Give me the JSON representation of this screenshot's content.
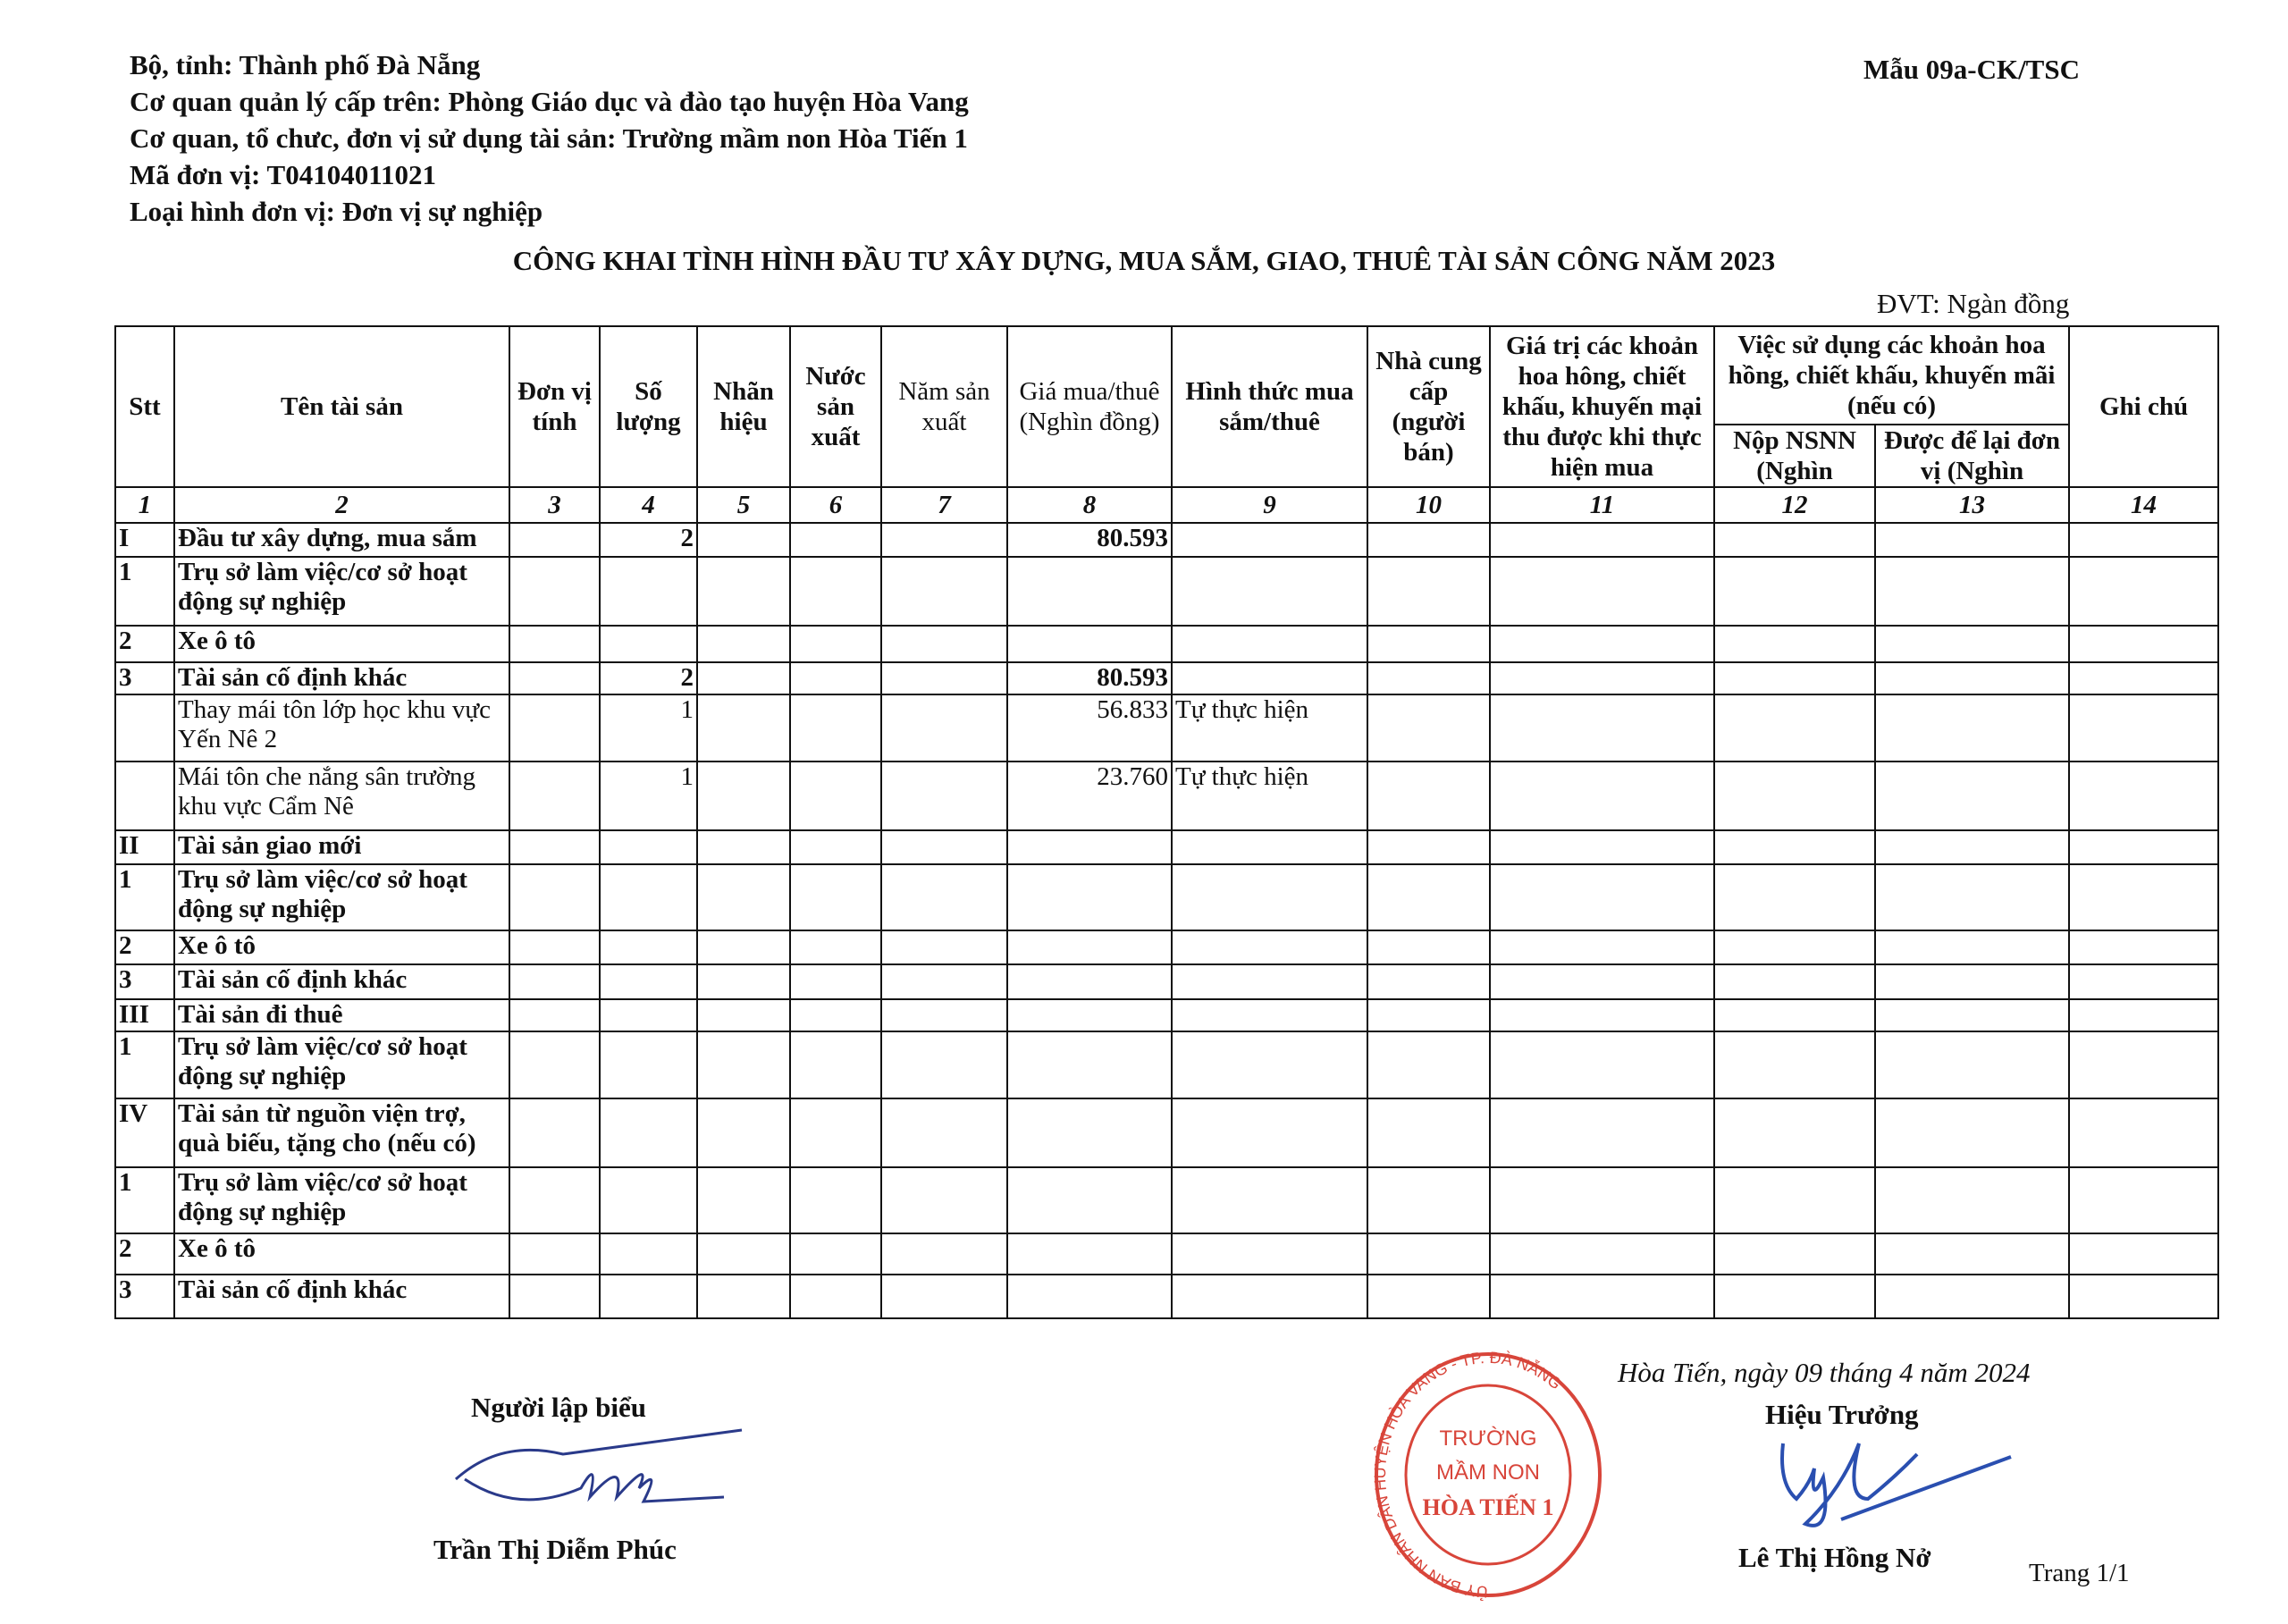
{
  "header": {
    "lines": [
      "Bộ, tỉnh: Thành phố Đà Nẵng",
      "Cơ quan quản lý cấp trên: Phòng Giáo dục và đào tạo huyện Hòa Vang",
      "Cơ quan, tổ chưc, đơn vị sử dụng tài sản: Trường mầm non Hòa Tiến 1",
      "Mã đơn vị: T04104011021",
      "Loại hình đơn vị: Đơn vị sự nghiệp"
    ],
    "form_code": "Mẫu 09a-CK/TSC",
    "title": "CÔNG KHAI TÌNH HÌNH ĐẦU TƯ XÂY DỰNG, MUA SẮM, GIAO, THUÊ TÀI SẢN CÔNG NĂM 2023",
    "unit": "ĐVT: Ngàn đồng"
  },
  "table": {
    "columns": {
      "stt": "Stt",
      "name": "Tên tài sản",
      "unit": "Đơn vị tính",
      "qty": "Số lượng",
      "brand": "Nhãn hiệu",
      "country": "Nước sản xuất",
      "year": "Năm sản xuất",
      "price": "Giá mua/thuê (Nghìn đồng)",
      "form": "Hình thức mua sắm/thuê",
      "supplier": "Nhà cung cấp (người bán)",
      "commission_value": "Giá trị các khoản hoa hông, chiết khấu, khuyến mại thu được khi thực hiện mua",
      "commission_use": "Việc sử dụng các khoản hoa hồng, chiết khấu, khuyến mãi (nếu có)",
      "nsnn": "Nộp NSNN (Nghìn",
      "retained": "Được để lại đơn vị (Nghìn",
      "note": "Ghi chú"
    },
    "column_numbers": [
      "1",
      "2",
      "3",
      "4",
      "5",
      "6",
      "7",
      "8",
      "9",
      "10",
      "11",
      "12",
      "13",
      "14"
    ],
    "rows": [
      {
        "type": "section",
        "cells": [
          "I",
          "Đầu tư xây dựng, mua sắm",
          "",
          "2",
          "",
          "",
          "",
          "80.593",
          "",
          "",
          "",
          "",
          "",
          ""
        ]
      },
      {
        "type": "section",
        "cells": [
          "1",
          "Trụ sở làm việc/cơ sở hoạt động sự nghiệp",
          "",
          "",
          "",
          "",
          "",
          "",
          "",
          "",
          "",
          "",
          "",
          ""
        ]
      },
      {
        "type": "section",
        "cells": [
          "2",
          "Xe ô tô",
          "",
          "",
          "",
          "",
          "",
          "",
          "",
          "",
          "",
          "",
          "",
          ""
        ]
      },
      {
        "type": "section",
        "cells": [
          "3",
          "Tài sản cố định khác",
          "",
          "2",
          "",
          "",
          "",
          "80.593",
          "",
          "",
          "",
          "",
          "",
          ""
        ]
      },
      {
        "type": "item",
        "cells": [
          "",
          "Thay mái tôn lớp học khu vực Yến Nê 2",
          "",
          "1",
          "",
          "",
          "",
          "56.833",
          "Tự thực hiện",
          "",
          "",
          "",
          "",
          ""
        ]
      },
      {
        "type": "item",
        "cells": [
          "",
          "Mái tôn che nắng sân trường khu vực Cẩm Nê",
          "",
          "1",
          "",
          "",
          "",
          "23.760",
          "Tự thực hiện",
          "",
          "",
          "",
          "",
          ""
        ]
      },
      {
        "type": "section",
        "cells": [
          "II",
          "Tài sản giao mới",
          "",
          "",
          "",
          "",
          "",
          "",
          "",
          "",
          "",
          "",
          "",
          ""
        ]
      },
      {
        "type": "section",
        "cells": [
          "1",
          "Trụ sở làm việc/cơ sở hoạt động sự nghiệp",
          "",
          "",
          "",
          "",
          "",
          "",
          "",
          "",
          "",
          "",
          "",
          ""
        ]
      },
      {
        "type": "section",
        "cells": [
          "2",
          "Xe ô tô",
          "",
          "",
          "",
          "",
          "",
          "",
          "",
          "",
          "",
          "",
          "",
          ""
        ]
      },
      {
        "type": "section",
        "cells": [
          "3",
          "Tài sản cố định khác",
          "",
          "",
          "",
          "",
          "",
          "",
          "",
          "",
          "",
          "",
          "",
          ""
        ]
      },
      {
        "type": "section",
        "cells": [
          "III",
          "Tài sản đi thuê",
          "",
          "",
          "",
          "",
          "",
          "",
          "",
          "",
          "",
          "",
          "",
          ""
        ]
      },
      {
        "type": "section",
        "cells": [
          "1",
          "Trụ sở làm việc/cơ sở hoạt động sự nghiệp",
          "",
          "",
          "",
          "",
          "",
          "",
          "",
          "",
          "",
          "",
          "",
          ""
        ]
      },
      {
        "type": "section",
        "cells": [
          "IV",
          "Tài sản từ nguồn viện trợ, quà biếu, tặng cho (nếu có)",
          "",
          "",
          "",
          "",
          "",
          "",
          "",
          "",
          "",
          "",
          "",
          ""
        ]
      },
      {
        "type": "section",
        "cells": [
          "1",
          "Trụ sở làm việc/cơ sở hoạt động sự nghiệp",
          "",
          "",
          "",
          "",
          "",
          "",
          "",
          "",
          "",
          "",
          "",
          ""
        ]
      },
      {
        "type": "section",
        "cells": [
          "2",
          "Xe ô tô",
          "",
          "",
          "",
          "",
          "",
          "",
          "",
          "",
          "",
          "",
          "",
          ""
        ]
      },
      {
        "type": "section",
        "cells": [
          "3",
          "Tài sản cố định khác",
          "",
          "",
          "",
          "",
          "",
          "",
          "",
          "",
          "",
          "",
          "",
          ""
        ]
      }
    ]
  },
  "footer": {
    "preparer_title": "Người lập biểu",
    "preparer_name": "Trần Thị Diễm Phúc",
    "date_line": "Hòa Tiến, ngày 09 tháng 4 năm 2024",
    "principal_title": "Hiệu Trưởng",
    "principal_name": "Lê Thị Hồng Nở",
    "page": "Trang 1/1"
  },
  "stamp": {
    "ring_text": "ỦY BAN NHÂN DÂN HUYỆN HÒA VANG - TP. ĐÀ NẴNG",
    "center_lines": [
      "TRƯỜNG",
      "MẦM NON",
      "HÒA TIẾN 1"
    ],
    "color": "#d8453a"
  },
  "colors": {
    "signature_ink": "#2a4fb0",
    "stamp": "#d8453a"
  }
}
